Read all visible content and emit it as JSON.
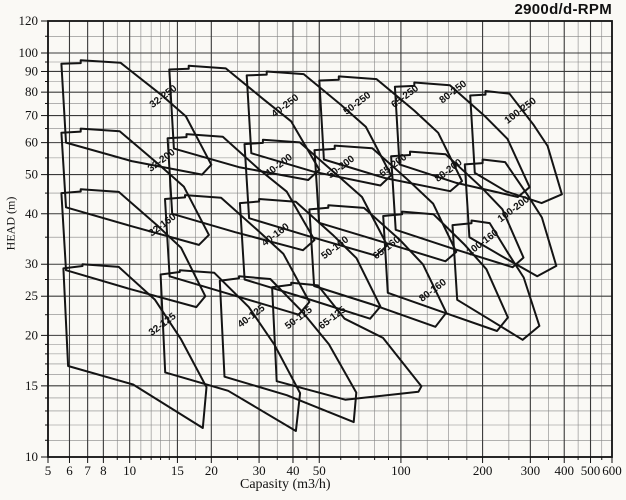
{
  "title": "2900d/d-RPM",
  "chart_data": {
    "type": "area",
    "subtype": "pump-selection-envelope-chart",
    "title": "2900d/d-RPM",
    "xlabel": "Capasity (m3/h)",
    "ylabel": "HEAD (m)",
    "x_scale": "log",
    "y_scale": "log",
    "xlim": [
      5,
      600
    ],
    "ylim": [
      10,
      120
    ],
    "grid": true,
    "legend": "none",
    "x_tick_labels": [
      5,
      6,
      7,
      8,
      10,
      15,
      20,
      30,
      40,
      50,
      100,
      200,
      300,
      400,
      500,
      600
    ],
    "y_tick_labels": [
      10,
      15,
      20,
      25,
      30,
      40,
      50,
      60,
      70,
      80,
      90,
      100,
      120
    ],
    "x_minor_gridlines": [
      9,
      11,
      12,
      13,
      14,
      17.5,
      25,
      35,
      45,
      60,
      70,
      80,
      90,
      125,
      150,
      175,
      250,
      350,
      450,
      550
    ],
    "y_minor_gridlines": [
      11,
      12,
      13,
      14,
      16,
      17,
      18,
      19,
      22.5,
      27.5,
      35,
      45,
      55,
      65,
      75,
      85,
      95,
      110
    ],
    "region_label_angle": -37,
    "regions": [
      {
        "name": "32-250",
        "label": {
          "q": 13.5,
          "h": 77
        },
        "q": {
          "left": 5.6,
          "chimney": 6.6,
          "shoulder": 13,
          "max": 20,
          "tip": 18.5
        },
        "h": {
          "top_left": 94,
          "peak": 96,
          "shoulder": 79,
          "tip": 50,
          "bottom_left": 60
        }
      },
      {
        "name": "40-250",
        "label": {
          "q": 38,
          "h": 73
        },
        "q": {
          "left": 14,
          "chimney": 16.5,
          "shoulder": 31,
          "max": 50,
          "tip": 45.5
        },
        "h": {
          "top_left": 91,
          "peak": 93,
          "shoulder": 77,
          "tip": 48.5,
          "bottom_left": 58
        }
      },
      {
        "name": "50-250",
        "label": {
          "q": 70,
          "h": 74
        },
        "q": {
          "left": 27,
          "chimney": 32,
          "shoulder": 60,
          "max": 92,
          "tip": 84
        },
        "h": {
          "top_left": 88,
          "peak": 90,
          "shoulder": 74.5,
          "tip": 47,
          "bottom_left": 56.5
        }
      },
      {
        "name": "65-250",
        "label": {
          "q": 105,
          "h": 77
        },
        "q": {
          "left": 50,
          "chimney": 59,
          "shoulder": 112,
          "max": 168,
          "tip": 152
        },
        "h": {
          "top_left": 85.5,
          "peak": 87.5,
          "shoulder": 72,
          "tip": 45.5,
          "bottom_left": 54.5
        }
      },
      {
        "name": "80-250",
        "label": {
          "q": 158,
          "h": 79
        },
        "q": {
          "left": 95,
          "chimney": 112,
          "shoulder": 205,
          "max": 298,
          "tip": 270
        },
        "h": {
          "top_left": 82.5,
          "peak": 84.5,
          "shoulder": 69.5,
          "tip": 44,
          "bottom_left": 53
        }
      },
      {
        "name": "100-250",
        "label": {
          "q": 280,
          "h": 71
        },
        "q": {
          "left": 180,
          "chimney": 205,
          "shoulder": 308,
          "max": 392,
          "tip": 330
        },
        "h": {
          "top_left": 78.5,
          "peak": 80.5,
          "shoulder": 66.5,
          "tip": 42.5,
          "bottom_left": 50.5
        }
      },
      {
        "name": "32-200",
        "label": {
          "q": 13.3,
          "h": 53.5
        },
        "q": {
          "left": 5.6,
          "chimney": 6.6,
          "shoulder": 12.8,
          "max": 19.6,
          "tip": 18
        },
        "h": {
          "top_left": 63.5,
          "peak": 65,
          "shoulder": 53,
          "tip": 33.5,
          "bottom_left": 41.5
        }
      },
      {
        "name": "40-200",
        "label": {
          "q": 36,
          "h": 52
        },
        "q": {
          "left": 13.8,
          "chimney": 16.2,
          "shoulder": 30,
          "max": 48,
          "tip": 43.5
        },
        "h": {
          "top_left": 61.5,
          "peak": 63,
          "shoulder": 51.5,
          "tip": 32.5,
          "bottom_left": 40
        }
      },
      {
        "name": "50-200",
        "label": {
          "q": 61,
          "h": 51.5
        },
        "q": {
          "left": 26.5,
          "chimney": 31,
          "shoulder": 58,
          "max": 89,
          "tip": 81
        },
        "h": {
          "top_left": 59.5,
          "peak": 61,
          "shoulder": 50,
          "tip": 31.5,
          "bottom_left": 39
        }
      },
      {
        "name": "65-200",
        "label": {
          "q": 95,
          "h": 52
        },
        "q": {
          "left": 48,
          "chimney": 57,
          "shoulder": 108,
          "max": 160,
          "tip": 146
        },
        "h": {
          "top_left": 57.5,
          "peak": 59,
          "shoulder": 48,
          "tip": 30.5,
          "bottom_left": 38
        }
      },
      {
        "name": "80-200",
        "label": {
          "q": 152,
          "h": 50.5
        },
        "q": {
          "left": 92,
          "chimney": 108,
          "shoulder": 198,
          "max": 283,
          "tip": 258
        },
        "h": {
          "top_left": 55.5,
          "peak": 57,
          "shoulder": 46.5,
          "tip": 29.5,
          "bottom_left": 36.5
        }
      },
      {
        "name": "100-200",
        "label": {
          "q": 264,
          "h": 40.5
        },
        "q": {
          "left": 172,
          "chimney": 200,
          "shoulder": 293,
          "max": 374,
          "tip": 318
        },
        "h": {
          "top_left": 53,
          "peak": 54.5,
          "shoulder": 44.5,
          "tip": 28,
          "bottom_left": 35
        }
      },
      {
        "name": "32-160",
        "label": {
          "q": 13.4,
          "h": 37
        },
        "q": {
          "left": 5.6,
          "chimney": 6.6,
          "shoulder": 12.6,
          "max": 19,
          "tip": 17.6
        },
        "h": {
          "top_left": 45,
          "peak": 46,
          "shoulder": 37.5,
          "tip": 23.5,
          "bottom_left": 29
        }
      },
      {
        "name": "40-160",
        "label": {
          "q": 35,
          "h": 35
        },
        "q": {
          "left": 13.5,
          "chimney": 16,
          "shoulder": 29.5,
          "max": 46,
          "tip": 42
        },
        "h": {
          "top_left": 43.5,
          "peak": 44.5,
          "shoulder": 36.5,
          "tip": 22.5,
          "bottom_left": 28
        }
      },
      {
        "name": "50-160",
        "label": {
          "q": 58,
          "h": 32.5
        },
        "q": {
          "left": 25.5,
          "chimney": 30,
          "shoulder": 56,
          "max": 84,
          "tip": 77
        },
        "h": {
          "top_left": 42.5,
          "peak": 43.5,
          "shoulder": 35.5,
          "tip": 22,
          "bottom_left": 27.5
        }
      },
      {
        "name": "65-160",
        "label": {
          "q": 90,
          "h": 32.5
        },
        "q": {
          "left": 46,
          "chimney": 54,
          "shoulder": 99,
          "max": 147,
          "tip": 134
        },
        "h": {
          "top_left": 41,
          "peak": 42,
          "shoulder": 34.5,
          "tip": 21,
          "bottom_left": 26.5
        }
      },
      {
        "name": "80-160",
        "label": {
          "q": 133,
          "h": 25.5
        },
        "q": {
          "left": 86,
          "chimney": 101,
          "shoulder": 172,
          "max": 248,
          "tip": 226
        },
        "h": {
          "top_left": 39.5,
          "peak": 40.5,
          "shoulder": 33.5,
          "tip": 20.5,
          "bottom_left": 25.5
        }
      },
      {
        "name": "100-160",
        "label": {
          "q": 203,
          "h": 33.5
        },
        "q": {
          "left": 155,
          "chimney": 182,
          "shoulder": 248,
          "max": 324,
          "tip": 281
        },
        "h": {
          "top_left": 37.5,
          "peak": 38.5,
          "shoulder": 32,
          "tip": 19.5,
          "bottom_left": 24.5
        }
      },
      {
        "name": "32-125",
        "label": {
          "q": 13.4,
          "h": 21
        },
        "q": {
          "left": 5.7,
          "chimney": 6.7,
          "shoulder": 12.4,
          "max": 19.2,
          "tip": 18.6
        },
        "h": {
          "top_left": 29.3,
          "peak": 30,
          "shoulder": 24.5,
          "tip": 11.8,
          "bottom_left": 16.8
        }
      },
      {
        "name": "40-125",
        "label": {
          "q": 28.5,
          "h": 22
        },
        "q": {
          "left": 13,
          "chimney": 15.3,
          "shoulder": 27.5,
          "max": 42.5,
          "tip": 41
        },
        "h": {
          "top_left": 28.3,
          "peak": 29,
          "shoulder": 23.5,
          "tip": 11.6,
          "bottom_left": 16.2
        }
      },
      {
        "name": "50-125",
        "label": {
          "q": 42.6,
          "h": 21.8
        },
        "q": {
          "left": 21.5,
          "chimney": 25.3,
          "shoulder": 43,
          "max": 68.5,
          "tip": 67
        },
        "h": {
          "top_left": 27.3,
          "peak": 28,
          "shoulder": 23,
          "tip": 12.2,
          "bottom_left": 15.8
        }
      },
      {
        "name": "65-125",
        "label": {
          "q": 56.7,
          "h": 21.8
        },
        "q": {
          "left": 33.5,
          "chimney": 39.4,
          "shoulder": 62,
          "max": 119,
          "tip": 116
        },
        "h": {
          "top_left": 26.3,
          "peak": 27,
          "shoulder": 22,
          "tip": 14.5,
          "bottom_left": 15.4
        }
      }
    ]
  },
  "colors": {
    "background": "#faf9f5",
    "grid_minor": "#858585",
    "grid_major": "#3a3a3a",
    "curve": "#141414",
    "text": "#111111"
  }
}
